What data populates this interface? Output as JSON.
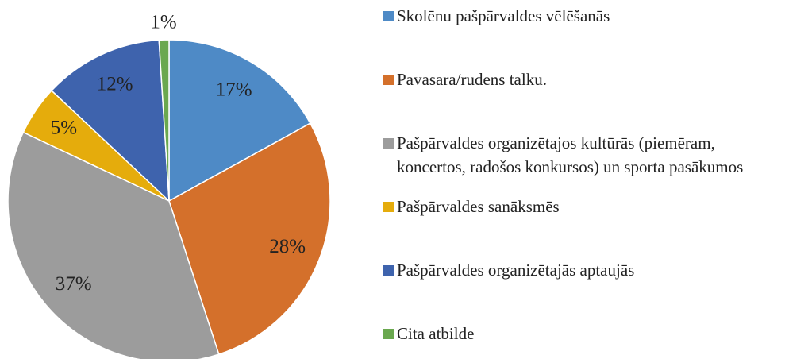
{
  "chart_data": {
    "type": "pie",
    "categories": [
      "Skolēnu pašpārvaldes vēlēšanās",
      "Pavasara/rudens talku.",
      "Pašpārvaldes organizētajos kultūrās (piemēram, koncertos, radošos konkursos) un sporta pasākumos",
      "Pašpārvaldes sanāksmēs",
      "Pašpārvaldes organizētajās aptaujās",
      "Cita atbilde"
    ],
    "values": [
      17,
      28,
      37,
      5,
      12,
      1
    ],
    "value_labels": [
      "17%",
      "28%",
      "37%",
      "5%",
      "12%",
      "1%"
    ],
    "colors": [
      "#4e8ac6",
      "#d4702b",
      "#9c9c9c",
      "#e5ac0c",
      "#3e63ad",
      "#6aa84f"
    ],
    "legend": "right"
  }
}
